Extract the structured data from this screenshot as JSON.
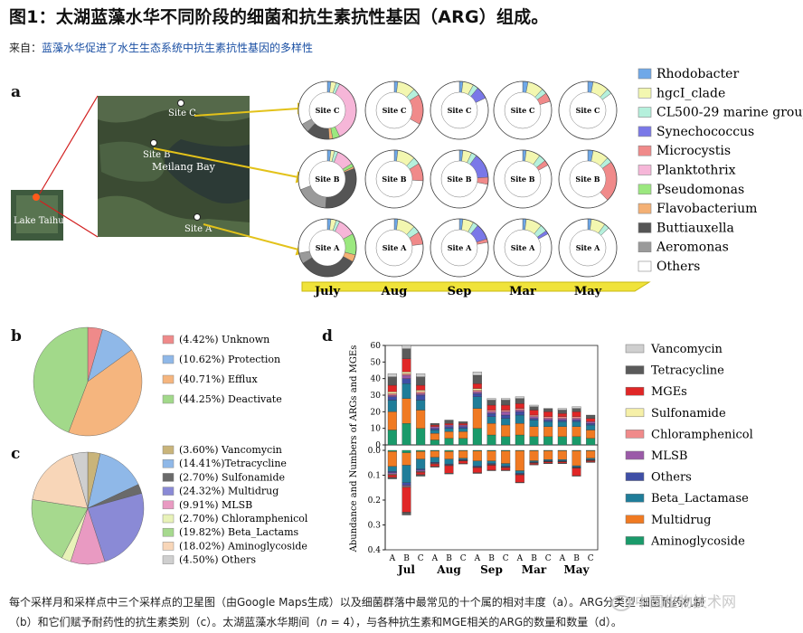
{
  "heading": "图1：太湖蓝藻水华不同阶段的细菌和抗生素抗性基因（ARG）组成。",
  "source": {
    "prefix": "来自：",
    "link": "蓝藻水华促进了水生生态系统中抗生素抗性基因的多样性"
  },
  "panel_a": {
    "letter": "a",
    "map_labels": {
      "lake": "Lake Taihu",
      "bay": "Meilang Bay",
      "siteA": "Site A",
      "siteB": "Site B",
      "siteC": "Site C"
    },
    "months": [
      "July",
      "Aug",
      "Sep",
      "Mar",
      "May"
    ],
    "rows": [
      "Site C",
      "Site B",
      "Site A"
    ],
    "taxa": [
      "Rhodobacter",
      "hgcI_clade",
      "CL500-29 marine group",
      "Synechococcus",
      "Microcystis",
      "Planktothrix",
      "Pseudomonas",
      "Flavobacterium",
      "Buttiauxella",
      "Aeromonas",
      "Others"
    ],
    "taxa_colors": [
      "#6fa8e8",
      "#f3f7b0",
      "#b5f0dc",
      "#7a78e8",
      "#f08a8a",
      "#f6b6d8",
      "#9be87f",
      "#f4b074",
      "#555555",
      "#9a9a9a",
      "#ffffff"
    ],
    "donuts": [
      [
        [
          0.02,
          0.03,
          0.02,
          0,
          0,
          0.36,
          0.04,
          0.02,
          0.13,
          0.05,
          0.33
        ],
        [
          0.02,
          0.1,
          0.04,
          0,
          0.17,
          0,
          0,
          0,
          0,
          0,
          0.67
        ],
        [
          0.02,
          0.06,
          0.03,
          0.07,
          0,
          0,
          0,
          0,
          0,
          0,
          0.82
        ],
        [
          0.03,
          0.09,
          0.03,
          0,
          0.05,
          0,
          0,
          0,
          0,
          0,
          0.8
        ],
        [
          0.03,
          0.09,
          0.03,
          0,
          0,
          0,
          0,
          0,
          0,
          0,
          0.85
        ]
      ],
      [
        [
          0.02,
          0.02,
          0.02,
          0,
          0,
          0.1,
          0.02,
          0.01,
          0.32,
          0.18,
          0.31
        ],
        [
          0.02,
          0.1,
          0.04,
          0,
          0.1,
          0,
          0,
          0,
          0,
          0,
          0.74
        ],
        [
          0.02,
          0.05,
          0.03,
          0.14,
          0.04,
          0,
          0,
          0,
          0,
          0,
          0.72
        ],
        [
          0.02,
          0.08,
          0.04,
          0,
          0.03,
          0,
          0,
          0,
          0,
          0,
          0.83
        ],
        [
          0.03,
          0.09,
          0.03,
          0,
          0.23,
          0,
          0,
          0,
          0,
          0,
          0.62
        ]
      ],
      [
        [
          0.02,
          0.03,
          0.02,
          0,
          0,
          0.1,
          0.12,
          0.04,
          0.33,
          0.06,
          0.28
        ],
        [
          0.02,
          0.1,
          0.04,
          0,
          0.07,
          0,
          0,
          0,
          0,
          0,
          0.77
        ],
        [
          0.02,
          0.06,
          0.03,
          0.09,
          0.02,
          0,
          0,
          0,
          0,
          0,
          0.78
        ],
        [
          0.02,
          0.09,
          0.04,
          0.02,
          0,
          0,
          0,
          0,
          0,
          0,
          0.83
        ],
        [
          0.02,
          0.08,
          0.03,
          0,
          0,
          0,
          0,
          0,
          0,
          0,
          0.87
        ]
      ]
    ]
  },
  "panel_b": {
    "letter": "b",
    "slices": [
      {
        "label": "(4.42%) Unknown",
        "value": 4.42,
        "color": "#ef8a8a"
      },
      {
        "label": "(10.62%) Protection",
        "value": 10.62,
        "color": "#8fb8e8"
      },
      {
        "label": "(40.71%) Efflux",
        "value": 40.71,
        "color": "#f5b57e"
      },
      {
        "label": "(44.25%) Deactivate",
        "value": 44.25,
        "color": "#a2d98a"
      }
    ]
  },
  "panel_c": {
    "letter": "c",
    "slices": [
      {
        "label": "(3.60%) Vancomycin",
        "value": 3.6,
        "color": "#c9b47a"
      },
      {
        "label": "(14.41%)Tetracycline",
        "value": 14.41,
        "color": "#8fb8e8"
      },
      {
        "label": "(2.70%) Sulfonamide",
        "value": 2.7,
        "color": "#6a6a6a"
      },
      {
        "label": "(24.32%) Multidrug",
        "value": 24.32,
        "color": "#8a8ad6"
      },
      {
        "label": "(9.91%) MLSB",
        "value": 9.91,
        "color": "#e99ac2"
      },
      {
        "label": "(2.70%) Chloramphenicol",
        "value": 2.7,
        "color": "#e8f2b8"
      },
      {
        "label": "(19.82%) Beta_Lactams",
        "value": 19.82,
        "color": "#a6d98e"
      },
      {
        "label": "(18.02%) Aminoglycoside",
        "value": 18.02,
        "color": "#f8d6b8"
      },
      {
        "label": "(4.50%) Others",
        "value": 4.5,
        "color": "#cfcfcf"
      }
    ]
  },
  "chart_data": {
    "type": "bar",
    "ylabel": "Abundance and Numbers of ARGs and MGEs",
    "top_ticks": [
      "0",
      "10",
      "20",
      "30",
      "40",
      "50",
      "60"
    ],
    "bottom_ticks": [
      "0.0",
      "0.1",
      "0.2",
      "0.3",
      "0.4"
    ],
    "top_ylim": [
      0,
      60
    ],
    "bottom_ylim": [
      0,
      0.4
    ],
    "categories": [
      "A",
      "B",
      "C",
      "A",
      "B",
      "C",
      "A",
      "B",
      "C",
      "A",
      "B",
      "C",
      "A",
      "B",
      "C"
    ],
    "months": [
      "Jul",
      "Aug",
      "Sep",
      "Mar",
      "May"
    ],
    "series_names": [
      "Aminoglycoside",
      "Multidrug",
      "Beta_Lactamase",
      "Others",
      "MLSB",
      "Chloramphenicol",
      "Sulfonamide",
      "MGEs",
      "Tetracycline",
      "Vancomycin"
    ],
    "series_colors": [
      "#1a9a6a",
      "#f07a22",
      "#1f7d99",
      "#3f4fa6",
      "#9b5aa8",
      "#f08a8a",
      "#f6f0a8",
      "#e02626",
      "#5a5a5a",
      "#cfcfcf"
    ],
    "numbers": [
      [
        9,
        11,
        7,
        2,
        1,
        1,
        1,
        4,
        5,
        2
      ],
      [
        13,
        15,
        9,
        3,
        2,
        1,
        1,
        8,
        6,
        2
      ],
      [
        10,
        11,
        6,
        3,
        1,
        1,
        1,
        3,
        5,
        2
      ],
      [
        3,
        4,
        2,
        1,
        1,
        0,
        0,
        1,
        1,
        0
      ],
      [
        4,
        4,
        2,
        1,
        1,
        0,
        0,
        1,
        2,
        0
      ],
      [
        4,
        4,
        2,
        1,
        1,
        0,
        0,
        1,
        1,
        0
      ],
      [
        10,
        12,
        7,
        2,
        1,
        1,
        1,
        3,
        5,
        2
      ],
      [
        6,
        7,
        4,
        2,
        1,
        1,
        0,
        3,
        3,
        1
      ],
      [
        5,
        7,
        4,
        2,
        2,
        1,
        0,
        3,
        3,
        1
      ],
      [
        6,
        7,
        5,
        2,
        1,
        1,
        0,
        3,
        3,
        1
      ],
      [
        5,
        6,
        4,
        1,
        1,
        1,
        0,
        3,
        2,
        1
      ],
      [
        5,
        6,
        3,
        1,
        1,
        1,
        0,
        3,
        2,
        0
      ],
      [
        5,
        6,
        3,
        1,
        1,
        1,
        0,
        2,
        2,
        1
      ],
      [
        5,
        6,
        3,
        1,
        1,
        1,
        0,
        3,
        2,
        1
      ],
      [
        4,
        5,
        3,
        1,
        1,
        0,
        0,
        2,
        2,
        0
      ]
    ],
    "abundance": [
      [
        0.005,
        0.06,
        0.02,
        0.005,
        0.005,
        0.002,
        0.002,
        0.01,
        0.005,
        0.001
      ],
      [
        0.01,
        0.05,
        0.07,
        0.01,
        0.005,
        0.002,
        0.002,
        0.1,
        0.01,
        0.001
      ],
      [
        0.005,
        0.03,
        0.04,
        0.005,
        0.005,
        0.002,
        0.001,
        0.01,
        0.005,
        0.001
      ],
      [
        0.003,
        0.025,
        0.02,
        0.003,
        0.002,
        0.001,
        0.001,
        0.01,
        0.003,
        0
      ],
      [
        0.005,
        0.03,
        0.02,
        0.003,
        0.002,
        0.001,
        0.001,
        0.03,
        0.003,
        0
      ],
      [
        0.002,
        0.03,
        0.005,
        0.003,
        0.001,
        0.001,
        0.001,
        0.01,
        0.002,
        0
      ],
      [
        0.003,
        0.04,
        0.02,
        0.003,
        0.002,
        0.001,
        0.001,
        0.02,
        0.003,
        0
      ],
      [
        0.003,
        0.04,
        0.01,
        0.003,
        0.002,
        0.001,
        0.001,
        0.02,
        0.002,
        0
      ],
      [
        0.003,
        0.05,
        0.01,
        0.003,
        0.002,
        0.001,
        0.001,
        0.01,
        0.002,
        0
      ],
      [
        0.002,
        0.08,
        0.01,
        0.003,
        0.002,
        0.001,
        0.001,
        0.03,
        0.002,
        0
      ],
      [
        0.002,
        0.04,
        0.005,
        0.002,
        0.001,
        0.001,
        0.001,
        0.005,
        0.002,
        0
      ],
      [
        0.002,
        0.035,
        0.005,
        0.002,
        0.001,
        0.001,
        0.001,
        0.005,
        0.002,
        0
      ],
      [
        0.002,
        0.035,
        0.005,
        0.002,
        0.001,
        0.001,
        0.001,
        0.005,
        0.002,
        0
      ],
      [
        0.002,
        0.06,
        0.005,
        0.002,
        0.001,
        0.001,
        0.001,
        0.03,
        0.002,
        0
      ],
      [
        0.002,
        0.03,
        0.005,
        0.002,
        0.001,
        0.001,
        0.001,
        0.005,
        0.002,
        0
      ]
    ]
  },
  "panel_d": {
    "letter": "d",
    "legend": [
      {
        "label": "Vancomycin",
        "color": "#cfcfcf"
      },
      {
        "label": "Tetracycline",
        "color": "#5a5a5a"
      },
      {
        "label": "MGEs",
        "color": "#e02626"
      },
      {
        "label": "Sulfonamide",
        "color": "#f6f0a8"
      },
      {
        "label": "Chloramphenicol",
        "color": "#f08a8a"
      },
      {
        "label": "MLSB",
        "color": "#9b5aa8"
      },
      {
        "label": "Others",
        "color": "#3f4fa6"
      },
      {
        "label": "Beta_Lactamase",
        "color": "#1f7d99"
      },
      {
        "label": "Multidrug",
        "color": "#f07a22"
      },
      {
        "label": "Aminoglycoside",
        "color": "#1a9a6a"
      }
    ]
  },
  "caption": {
    "line1": "每个采样月和采样点中三个采样点的卫星图（由Google Maps生成）以及细菌群落中最常见的十个属的相对丰度（a）。ARG分类型 细菌耐药机制",
    "line2_a": "（b）和它们赋予耐药性的抗生素类别（c）。太湖蓝藻水华期间（",
    "line2_n": "n",
    "line2_b": " = 4），与各种抗生素和MGE相关的ARG的数量和数量（d）。"
  },
  "watermark": "中国生物技术网"
}
